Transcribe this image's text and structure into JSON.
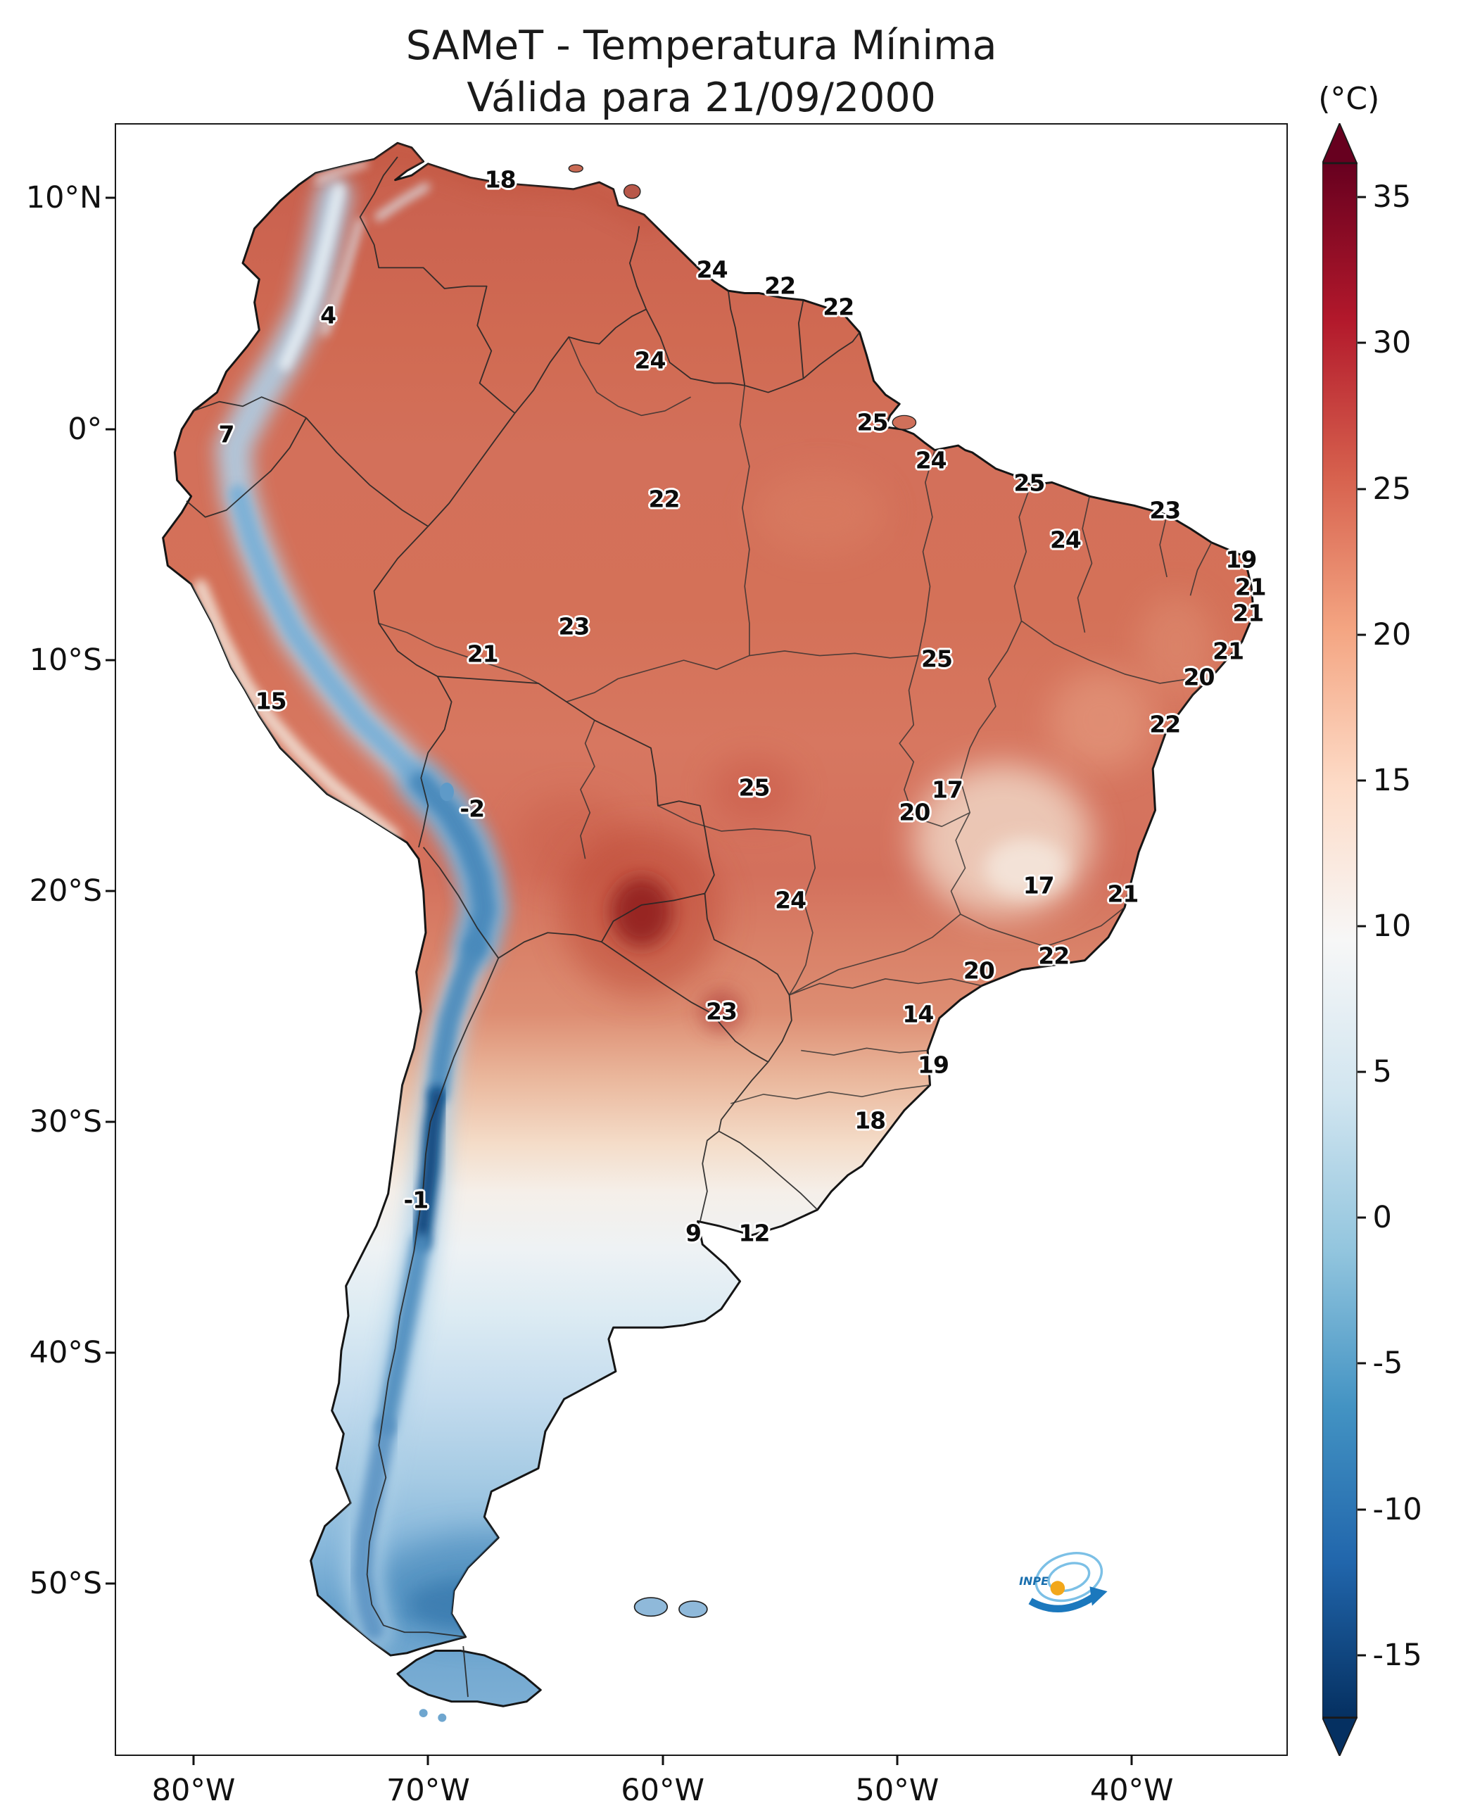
{
  "title": {
    "line1": "SAMeT - Temperatura Mínima",
    "line2": "Válida para 21/09/2000"
  },
  "colorbar": {
    "unit_label": "(°C)",
    "ticks": [
      "35",
      "30",
      "25",
      "20",
      "15",
      "10",
      "5",
      "0",
      "-5",
      "-10",
      "-15"
    ]
  },
  "axes": {
    "lat_ticks": [
      {
        "label": "10°N",
        "pos": 4.53
      },
      {
        "label": "0°",
        "pos": 18.7
      },
      {
        "label": "10°S",
        "pos": 32.86
      },
      {
        "label": "20°S",
        "pos": 47.03
      },
      {
        "label": "30°S",
        "pos": 61.19
      },
      {
        "label": "40°S",
        "pos": 75.35
      },
      {
        "label": "50°S",
        "pos": 89.52
      }
    ],
    "lon_ticks": [
      {
        "label": "80°W",
        "pos": 6.61
      },
      {
        "label": "70°W",
        "pos": 26.65
      },
      {
        "label": "60°W",
        "pos": 46.69
      },
      {
        "label": "50°W",
        "pos": 66.73
      },
      {
        "label": "40°W",
        "pos": 86.77
      }
    ]
  },
  "chart_data": {
    "type": "heatmap",
    "title": "SAMeT - Temperatura Mínima",
    "subtitle": "Válida para 21/09/2000",
    "region": "South America",
    "unit": "°C",
    "colorbar_ticks": [
      35,
      30,
      25,
      20,
      15,
      10,
      5,
      0,
      -5,
      -10,
      -15
    ],
    "colorbar_extend": "both",
    "cmap": "red-white-blue (warm north, cold Andes/Patagonia)",
    "point_labels": [
      {
        "v": "18",
        "x": 32.8,
        "y": 3.4
      },
      {
        "v": "24",
        "x": 50.9,
        "y": 8.9
      },
      {
        "v": "22",
        "x": 56.7,
        "y": 9.9
      },
      {
        "v": "22",
        "x": 61.7,
        "y": 11.2
      },
      {
        "v": "4",
        "x": 18.1,
        "y": 11.7
      },
      {
        "v": "24",
        "x": 45.6,
        "y": 14.5
      },
      {
        "v": "7",
        "x": 9.4,
        "y": 19.0
      },
      {
        "v": "25",
        "x": 64.6,
        "y": 18.3
      },
      {
        "v": "24",
        "x": 69.6,
        "y": 20.6
      },
      {
        "v": "25",
        "x": 78.0,
        "y": 22.0
      },
      {
        "v": "22",
        "x": 46.8,
        "y": 23.0
      },
      {
        "v": "23",
        "x": 89.6,
        "y": 23.7
      },
      {
        "v": "24",
        "x": 81.1,
        "y": 25.5
      },
      {
        "v": "19",
        "x": 96.1,
        "y": 26.7
      },
      {
        "v": "21",
        "x": 96.9,
        "y": 28.4
      },
      {
        "v": "21",
        "x": 96.7,
        "y": 30.0
      },
      {
        "v": "23",
        "x": 39.1,
        "y": 30.8
      },
      {
        "v": "21",
        "x": 31.3,
        "y": 32.5
      },
      {
        "v": "25",
        "x": 70.1,
        "y": 32.8
      },
      {
        "v": "21",
        "x": 95.0,
        "y": 32.3
      },
      {
        "v": "20",
        "x": 92.5,
        "y": 33.9
      },
      {
        "v": "15",
        "x": 13.2,
        "y": 35.4
      },
      {
        "v": "22",
        "x": 89.6,
        "y": 36.8
      },
      {
        "v": "-2",
        "x": 30.4,
        "y": 42.0
      },
      {
        "v": "25",
        "x": 54.5,
        "y": 40.7
      },
      {
        "v": "17",
        "x": 71.0,
        "y": 40.8
      },
      {
        "v": "20",
        "x": 68.2,
        "y": 42.2
      },
      {
        "v": "24",
        "x": 57.6,
        "y": 47.6
      },
      {
        "v": "17",
        "x": 78.8,
        "y": 46.7
      },
      {
        "v": "21",
        "x": 86.0,
        "y": 47.2
      },
      {
        "v": "20",
        "x": 73.7,
        "y": 51.9
      },
      {
        "v": "22",
        "x": 80.1,
        "y": 51.0
      },
      {
        "v": "23",
        "x": 51.7,
        "y": 54.4
      },
      {
        "v": "14",
        "x": 68.5,
        "y": 54.6
      },
      {
        "v": "19",
        "x": 69.8,
        "y": 57.7
      },
      {
        "v": "18",
        "x": 64.4,
        "y": 61.1
      },
      {
        "v": "-1",
        "x": 25.6,
        "y": 66.0
      },
      {
        "v": "9",
        "x": 49.3,
        "y": 68.0
      },
      {
        "v": "12",
        "x": 54.5,
        "y": 68.0
      }
    ]
  },
  "logo": {
    "text": "INPE"
  }
}
